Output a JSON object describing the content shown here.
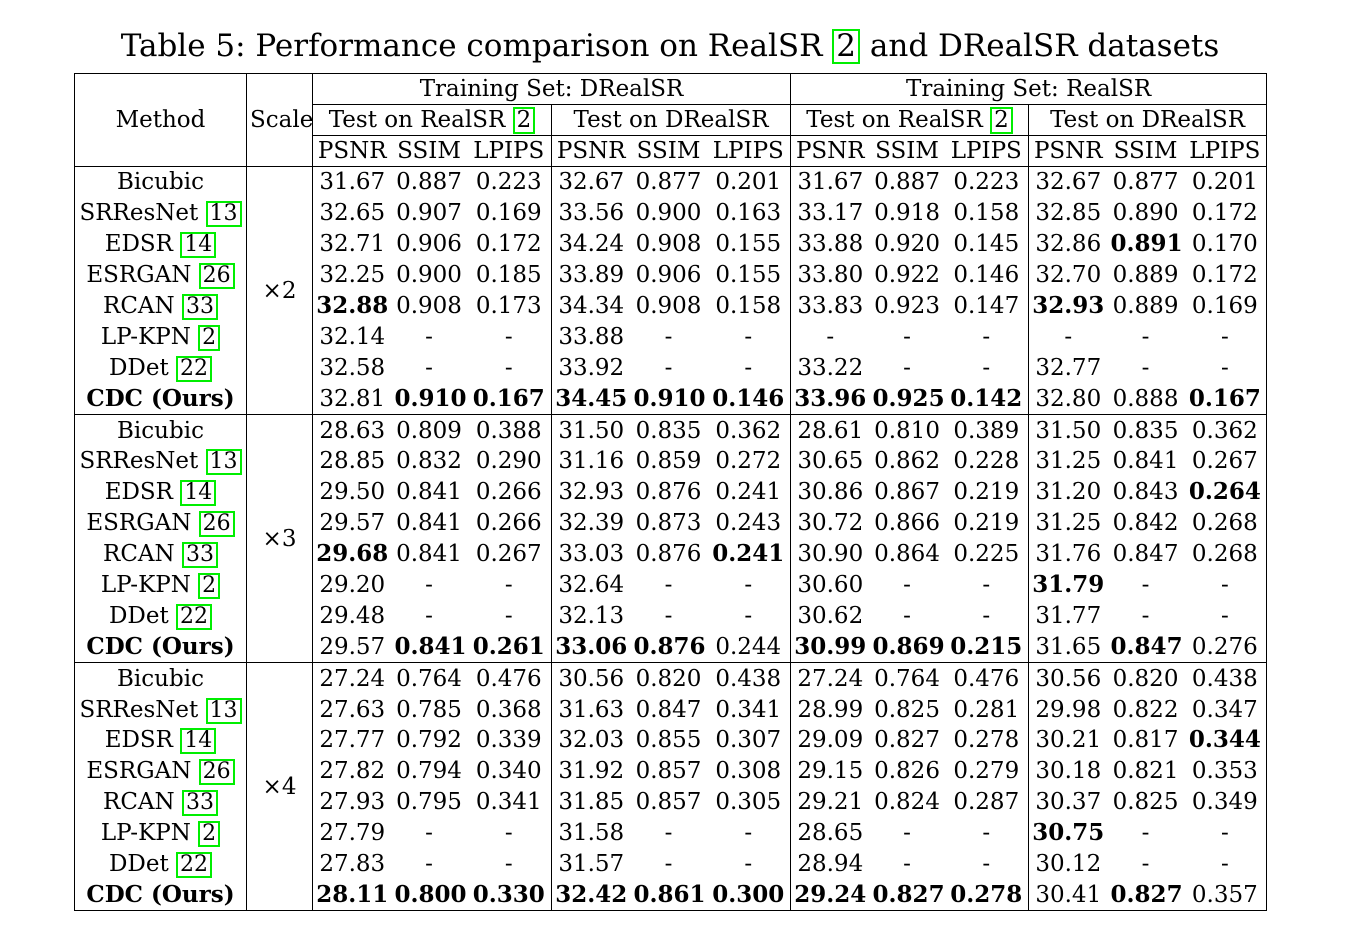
{
  "caption": {
    "prefix": "Table 5: Performance comparison on RealSR ",
    "ref": "2",
    "suffix": " and DRealSR datasets"
  },
  "header": {
    "method": "Method",
    "scale": "Scale",
    "training_sets": [
      "Training Set: DRealSR",
      "Training Set: RealSR"
    ],
    "tests": [
      {
        "label": "Test on RealSR ",
        "ref": "2"
      },
      {
        "label": "Test on DRealSR",
        "ref": ""
      },
      {
        "label": "Test on RealSR ",
        "ref": "2"
      },
      {
        "label": "Test on DRealSR",
        "ref": ""
      }
    ],
    "metrics": [
      "PSNR",
      "SSIM",
      "LPIPS"
    ]
  },
  "groups": [
    {
      "scale": "×2",
      "rows": [
        {
          "name": "Bicubic",
          "ref": "",
          "bold_name": false,
          "values": [
            "31.67",
            "0.887",
            "0.223",
            "32.67",
            "0.877",
            "0.201",
            "31.67",
            "0.887",
            "0.223",
            "32.67",
            "0.877",
            "0.201"
          ],
          "bold": [
            false,
            false,
            false,
            false,
            false,
            false,
            false,
            false,
            false,
            false,
            false,
            false
          ]
        },
        {
          "name": "SRResNet ",
          "ref": "13",
          "bold_name": false,
          "values": [
            "32.65",
            "0.907",
            "0.169",
            "33.56",
            "0.900",
            "0.163",
            "33.17",
            "0.918",
            "0.158",
            "32.85",
            "0.890",
            "0.172"
          ],
          "bold": [
            false,
            false,
            false,
            false,
            false,
            false,
            false,
            false,
            false,
            false,
            false,
            false
          ]
        },
        {
          "name": "EDSR ",
          "ref": "14",
          "bold_name": false,
          "values": [
            "32.71",
            "0.906",
            "0.172",
            "34.24",
            "0.908",
            "0.155",
            "33.88",
            "0.920",
            "0.145",
            "32.86",
            "0.891",
            "0.170"
          ],
          "bold": [
            false,
            false,
            false,
            false,
            false,
            false,
            false,
            false,
            false,
            false,
            true,
            false
          ]
        },
        {
          "name": "ESRGAN ",
          "ref": "26",
          "bold_name": false,
          "values": [
            "32.25",
            "0.900",
            "0.185",
            "33.89",
            "0.906",
            "0.155",
            "33.80",
            "0.922",
            "0.146",
            "32.70",
            "0.889",
            "0.172"
          ],
          "bold": [
            false,
            false,
            false,
            false,
            false,
            false,
            false,
            false,
            false,
            false,
            false,
            false
          ]
        },
        {
          "name": "RCAN ",
          "ref": "33",
          "bold_name": false,
          "values": [
            "32.88",
            "0.908",
            "0.173",
            "34.34",
            "0.908",
            "0.158",
            "33.83",
            "0.923",
            "0.147",
            "32.93",
            "0.889",
            "0.169"
          ],
          "bold": [
            true,
            false,
            false,
            false,
            false,
            false,
            false,
            false,
            false,
            true,
            false,
            false
          ]
        },
        {
          "name": "LP-KPN ",
          "ref": "2",
          "bold_name": false,
          "values": [
            "32.14",
            "-",
            "-",
            "33.88",
            "-",
            "-",
            "-",
            "-",
            "-",
            "-",
            "-",
            "-"
          ],
          "bold": [
            false,
            false,
            false,
            false,
            false,
            false,
            false,
            false,
            false,
            false,
            false,
            false
          ]
        },
        {
          "name": "DDet ",
          "ref": "22",
          "bold_name": false,
          "values": [
            "32.58",
            "-",
            "-",
            "33.92",
            "-",
            "-",
            "33.22",
            "-",
            "-",
            "32.77",
            "-",
            "-"
          ],
          "bold": [
            false,
            false,
            false,
            false,
            false,
            false,
            false,
            false,
            false,
            false,
            false,
            false
          ]
        },
        {
          "name": "CDC (Ours)",
          "ref": "",
          "bold_name": true,
          "values": [
            "32.81",
            "0.910",
            "0.167",
            "34.45",
            "0.910",
            "0.146",
            "33.96",
            "0.925",
            "0.142",
            "32.80",
            "0.888",
            "0.167"
          ],
          "bold": [
            false,
            true,
            true,
            true,
            true,
            true,
            true,
            true,
            true,
            false,
            false,
            true
          ]
        }
      ]
    },
    {
      "scale": "×3",
      "rows": [
        {
          "name": "Bicubic",
          "ref": "",
          "bold_name": false,
          "values": [
            "28.63",
            "0.809",
            "0.388",
            "31.50",
            "0.835",
            "0.362",
            "28.61",
            "0.810",
            "0.389",
            "31.50",
            "0.835",
            "0.362"
          ],
          "bold": [
            false,
            false,
            false,
            false,
            false,
            false,
            false,
            false,
            false,
            false,
            false,
            false
          ]
        },
        {
          "name": "SRResNet ",
          "ref": "13",
          "bold_name": false,
          "values": [
            "28.85",
            "0.832",
            "0.290",
            "31.16",
            "0.859",
            "0.272",
            "30.65",
            "0.862",
            "0.228",
            "31.25",
            "0.841",
            "0.267"
          ],
          "bold": [
            false,
            false,
            false,
            false,
            false,
            false,
            false,
            false,
            false,
            false,
            false,
            false
          ]
        },
        {
          "name": "EDSR ",
          "ref": "14",
          "bold_name": false,
          "values": [
            "29.50",
            "0.841",
            "0.266",
            "32.93",
            "0.876",
            "0.241",
            "30.86",
            "0.867",
            "0.219",
            "31.20",
            "0.843",
            "0.264"
          ],
          "bold": [
            false,
            false,
            false,
            false,
            false,
            false,
            false,
            false,
            false,
            false,
            false,
            true
          ]
        },
        {
          "name": "ESRGAN ",
          "ref": "26",
          "bold_name": false,
          "values": [
            "29.57",
            "0.841",
            "0.266",
            "32.39",
            "0.873",
            "0.243",
            "30.72",
            "0.866",
            "0.219",
            "31.25",
            "0.842",
            "0.268"
          ],
          "bold": [
            false,
            false,
            false,
            false,
            false,
            false,
            false,
            false,
            false,
            false,
            false,
            false
          ]
        },
        {
          "name": "RCAN ",
          "ref": "33",
          "bold_name": false,
          "values": [
            "29.68",
            "0.841",
            "0.267",
            "33.03",
            "0.876",
            "0.241",
            "30.90",
            "0.864",
            "0.225",
            "31.76",
            "0.847",
            "0.268"
          ],
          "bold": [
            true,
            false,
            false,
            false,
            false,
            true,
            false,
            false,
            false,
            false,
            false,
            false
          ]
        },
        {
          "name": "LP-KPN ",
          "ref": "2",
          "bold_name": false,
          "values": [
            "29.20",
            "-",
            "-",
            "32.64",
            "-",
            "-",
            "30.60",
            "-",
            "-",
            "31.79",
            "-",
            "-"
          ],
          "bold": [
            false,
            false,
            false,
            false,
            false,
            false,
            false,
            false,
            false,
            true,
            false,
            false
          ]
        },
        {
          "name": "DDet ",
          "ref": "22",
          "bold_name": false,
          "values": [
            "29.48",
            "-",
            "-",
            "32.13",
            "-",
            "-",
            "30.62",
            "-",
            "-",
            "31.77",
            "-",
            "-"
          ],
          "bold": [
            false,
            false,
            false,
            false,
            false,
            false,
            false,
            false,
            false,
            false,
            false,
            false
          ]
        },
        {
          "name": "CDC (Ours)",
          "ref": "",
          "bold_name": true,
          "values": [
            "29.57",
            "0.841",
            "0.261",
            "33.06",
            "0.876",
            "0.244",
            "30.99",
            "0.869",
            "0.215",
            "31.65",
            "0.847",
            "0.276"
          ],
          "bold": [
            false,
            true,
            true,
            true,
            true,
            false,
            true,
            true,
            true,
            false,
            true,
            false
          ]
        }
      ]
    },
    {
      "scale": "×4",
      "rows": [
        {
          "name": "Bicubic",
          "ref": "",
          "bold_name": false,
          "values": [
            "27.24",
            "0.764",
            "0.476",
            "30.56",
            "0.820",
            "0.438",
            "27.24",
            "0.764",
            "0.476",
            "30.56",
            "0.820",
            "0.438"
          ],
          "bold": [
            false,
            false,
            false,
            false,
            false,
            false,
            false,
            false,
            false,
            false,
            false,
            false
          ]
        },
        {
          "name": "SRResNet ",
          "ref": "13",
          "bold_name": false,
          "values": [
            "27.63",
            "0.785",
            "0.368",
            "31.63",
            "0.847",
            "0.341",
            "28.99",
            "0.825",
            "0.281",
            "29.98",
            "0.822",
            "0.347"
          ],
          "bold": [
            false,
            false,
            false,
            false,
            false,
            false,
            false,
            false,
            false,
            false,
            false,
            false
          ]
        },
        {
          "name": "EDSR ",
          "ref": "14",
          "bold_name": false,
          "values": [
            "27.77",
            "0.792",
            "0.339",
            "32.03",
            "0.855",
            "0.307",
            "29.09",
            "0.827",
            "0.278",
            "30.21",
            "0.817",
            "0.344"
          ],
          "bold": [
            false,
            false,
            false,
            false,
            false,
            false,
            false,
            false,
            false,
            false,
            false,
            true
          ]
        },
        {
          "name": "ESRGAN ",
          "ref": "26",
          "bold_name": false,
          "values": [
            "27.82",
            "0.794",
            "0.340",
            "31.92",
            "0.857",
            "0.308",
            "29.15",
            "0.826",
            "0.279",
            "30.18",
            "0.821",
            "0.353"
          ],
          "bold": [
            false,
            false,
            false,
            false,
            false,
            false,
            false,
            false,
            false,
            false,
            false,
            false
          ]
        },
        {
          "name": "RCAN ",
          "ref": "33",
          "bold_name": false,
          "values": [
            "27.93",
            "0.795",
            "0.341",
            "31.85",
            "0.857",
            "0.305",
            "29.21",
            "0.824",
            "0.287",
            "30.37",
            "0.825",
            "0.349"
          ],
          "bold": [
            false,
            false,
            false,
            false,
            false,
            false,
            false,
            false,
            false,
            false,
            false,
            false
          ]
        },
        {
          "name": "LP-KPN ",
          "ref": "2",
          "bold_name": false,
          "values": [
            "27.79",
            "-",
            "-",
            "31.58",
            "-",
            "-",
            "28.65",
            "-",
            "-",
            "30.75",
            "-",
            "-"
          ],
          "bold": [
            false,
            false,
            false,
            false,
            false,
            false,
            false,
            false,
            false,
            true,
            false,
            false
          ]
        },
        {
          "name": "DDet ",
          "ref": "22",
          "bold_name": false,
          "values": [
            "27.83",
            "-",
            "-",
            "31.57",
            "-",
            "-",
            "28.94",
            "-",
            "-",
            "30.12",
            "-",
            "-"
          ],
          "bold": [
            false,
            false,
            false,
            false,
            false,
            false,
            false,
            false,
            false,
            false,
            false,
            false
          ]
        },
        {
          "name": "CDC (Ours)",
          "ref": "",
          "bold_name": true,
          "values": [
            "28.11",
            "0.800",
            "0.330",
            "32.42",
            "0.861",
            "0.300",
            "29.24",
            "0.827",
            "0.278",
            "30.41",
            "0.827",
            "0.357"
          ],
          "bold": [
            true,
            true,
            true,
            true,
            true,
            true,
            true,
            true,
            true,
            false,
            true,
            false
          ]
        }
      ]
    }
  ]
}
